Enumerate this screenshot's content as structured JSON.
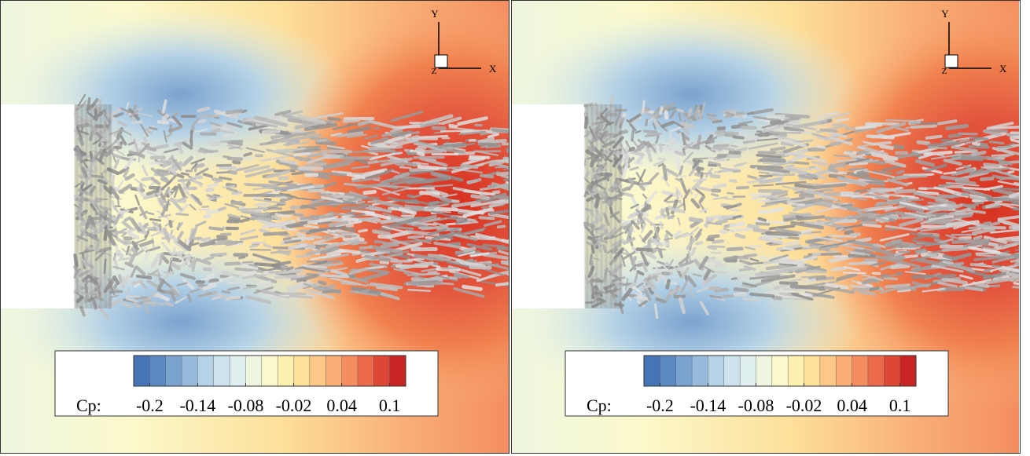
{
  "panels": [
    {
      "axes": {
        "y": "Y",
        "x": "X",
        "z": "Z"
      },
      "colorbar": {
        "label": "Cp:",
        "lim": [
          -0.22,
          0.12
        ],
        "ticks": [
          -0.2,
          -0.14,
          -0.08,
          -0.02,
          0.04,
          0.1
        ],
        "colors": [
          "#4575b4",
          "#5b8ac2",
          "#7aa3cf",
          "#98bbdb",
          "#b5d2e6",
          "#cce3ee",
          "#e0efef",
          "#eef6e0",
          "#fbf9cc",
          "#fdf0b0",
          "#fde09a",
          "#fcc888",
          "#f9ae76",
          "#f48d5f",
          "#ea6a4a",
          "#dd4736",
          "#c82424"
        ]
      }
    },
    {
      "axes": {
        "y": "Y",
        "x": "X",
        "z": "Z"
      },
      "colorbar": {
        "label": "Cp:",
        "lim": [
          -0.22,
          0.12
        ],
        "ticks": [
          -0.2,
          -0.14,
          -0.08,
          -0.02,
          0.04,
          0.1
        ],
        "colors": [
          "#4575b4",
          "#5b8ac2",
          "#7aa3cf",
          "#98bbdb",
          "#b5d2e6",
          "#cce3ee",
          "#e0efef",
          "#eef6e0",
          "#fbf9cc",
          "#fdf0b0",
          "#fde09a",
          "#fcc888",
          "#f9ae76",
          "#f48d5f",
          "#ea6a4a",
          "#dd4736",
          "#c82424"
        ]
      }
    }
  ]
}
